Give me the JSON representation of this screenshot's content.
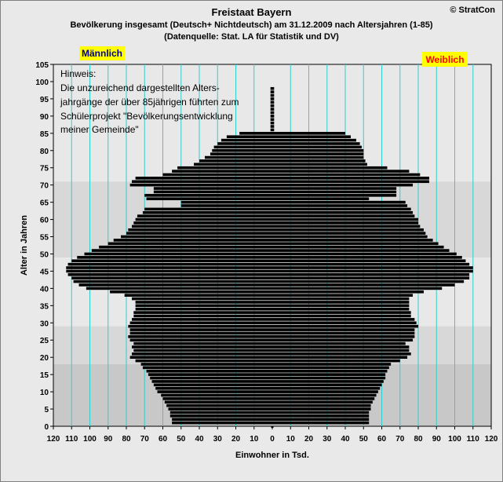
{
  "header": {
    "title": "Freistaat Bayern",
    "subtitle": "Bevölkerung  insgesamt (Deutsch+ Nichtdeutsch) am 31.12.2009 nach Altersjahren (1-85)",
    "source": "(Datenquelle: Stat. LA für Statistik und DV)",
    "copyright": "© StratCon"
  },
  "note": {
    "lines": [
      "Hinweis:",
      "Die unzureichend dargestellten Alters-",
      "jahrgänge der über 85jährigen führten zum",
      "Schülerprojekt \"Bevölkerungsentwicklung",
      "meiner Gemeinde\""
    ]
  },
  "colors": {
    "bars": "#000000",
    "gridlines": "#33cccc",
    "legend_bg": "#ffff00",
    "legend_male_text": "#000080",
    "legend_female_text": "#ff0000",
    "band_dark": "#c8c8c8",
    "band_mid": "#d8d8d8",
    "band_light": "#e8e8e8"
  },
  "chart_data": {
    "type": "bar",
    "orientation": "horizontal-pyramid",
    "title": "Freistaat Bayern",
    "xlabel": "Einwohner in Tsd.",
    "ylabel": "Alter in Jahren",
    "xlim": [
      -120,
      120
    ],
    "ylim": [
      0,
      105
    ],
    "x_ticks": [
      120,
      110,
      100,
      90,
      80,
      70,
      60,
      50,
      40,
      30,
      20,
      10,
      0,
      10,
      20,
      30,
      40,
      50,
      60,
      70,
      80,
      90,
      100,
      110,
      120
    ],
    "y_ticks": [
      0,
      5,
      10,
      15,
      20,
      25,
      30,
      35,
      40,
      45,
      50,
      55,
      60,
      65,
      70,
      75,
      80,
      85,
      90,
      95,
      100,
      105
    ],
    "grid": true,
    "legend": [
      {
        "name": "Männlich",
        "position": "top-left"
      },
      {
        "name": "Weiblich",
        "position": "top-right"
      }
    ],
    "ages": [
      1,
      2,
      3,
      4,
      5,
      6,
      7,
      8,
      9,
      10,
      11,
      12,
      13,
      14,
      15,
      16,
      17,
      18,
      19,
      20,
      21,
      22,
      23,
      24,
      25,
      26,
      27,
      28,
      29,
      30,
      31,
      32,
      33,
      34,
      35,
      36,
      37,
      38,
      39,
      40,
      41,
      42,
      43,
      44,
      45,
      46,
      47,
      48,
      49,
      50,
      51,
      52,
      53,
      54,
      55,
      56,
      57,
      58,
      59,
      60,
      61,
      62,
      63,
      64,
      65,
      66,
      67,
      68,
      69,
      70,
      71,
      72,
      73,
      74,
      75,
      76,
      77,
      78,
      79,
      80,
      81,
      82,
      83,
      84,
      85,
      86,
      87,
      88,
      89,
      90,
      91,
      92,
      93,
      94,
      95,
      96,
      97,
      98
    ],
    "series": [
      {
        "name": "Männlich",
        "values": [
          55,
          55,
          56,
          56,
          57,
          58,
          59,
          60,
          61,
          63,
          64,
          65,
          66,
          67,
          68,
          69,
          71,
          72,
          75,
          78,
          77,
          76,
          77,
          76,
          78,
          79,
          78,
          78,
          79,
          78,
          77,
          76,
          76,
          75,
          75,
          75,
          77,
          81,
          89,
          102,
          106,
          109,
          110,
          112,
          113,
          113,
          112,
          110,
          107,
          103,
          99,
          95,
          90,
          87,
          83,
          80,
          79,
          77,
          76,
          75,
          74,
          71,
          70,
          50,
          50,
          69,
          70,
          65,
          65,
          78,
          77,
          75,
          60,
          55,
          52,
          43,
          40,
          37,
          34,
          33,
          32,
          30,
          28,
          25,
          18,
          1,
          1,
          1,
          1,
          1,
          1,
          1,
          1,
          1,
          1,
          1,
          1,
          1
        ]
      },
      {
        "name": "Weiblich",
        "values": [
          53,
          53,
          53,
          53,
          54,
          54,
          55,
          56,
          57,
          58,
          59,
          60,
          61,
          62,
          62,
          63,
          64,
          65,
          70,
          74,
          76,
          75,
          75,
          73,
          77,
          78,
          78,
          78,
          80,
          79,
          78,
          76,
          76,
          75,
          75,
          75,
          75,
          77,
          83,
          93,
          100,
          105,
          108,
          108,
          110,
          110,
          108,
          106,
          104,
          101,
          97,
          94,
          91,
          88,
          85,
          84,
          83,
          81,
          80,
          80,
          78,
          77,
          76,
          74,
          73,
          53,
          68,
          68,
          68,
          77,
          86,
          86,
          81,
          75,
          63,
          52,
          51,
          50,
          50,
          50,
          49,
          48,
          46,
          43,
          40,
          1,
          1,
          1,
          1,
          1,
          1,
          1,
          1,
          1,
          1,
          1,
          1,
          1
        ]
      }
    ]
  }
}
